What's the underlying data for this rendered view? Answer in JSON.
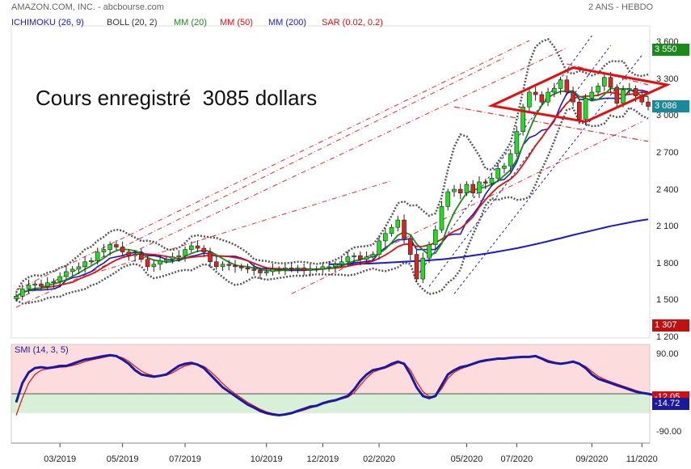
{
  "header": {
    "title": "AMAZON.COM, INC. - abcbourse.com",
    "timeframe": "2 ANS - HEBDO"
  },
  "indicators": [
    {
      "label": "ICHIMOKU (26, 9)",
      "color": "#1a1ac8"
    },
    {
      "label": "BOLL (20, 2)",
      "color": "#333333"
    },
    {
      "label": "MM (20)",
      "color": "#1a8a1a"
    },
    {
      "label": "MM (50)",
      "color": "#e01010"
    },
    {
      "label": "MM (200)",
      "color": "#1a1ac8"
    },
    {
      "label": "SAR (0.02, 0.2)",
      "color": "#d01010"
    }
  ],
  "annotation": "Cours enregistré  3085 dollars",
  "chart_data": [
    {
      "type": "candlestick",
      "yticks": [
        "3 600",
        "3 300",
        "3 000",
        "2 700",
        "2 400",
        "2 100",
        "1 800",
        "1 500",
        "1 200"
      ],
      "ylim": [
        1200,
        3700
      ],
      "xticks": [
        "03/2019",
        "05/2019",
        "07/2019",
        "10/2019",
        "12/2019",
        "02/2020",
        "05/2020",
        "07/2020",
        "09/2020",
        "11/2020"
      ],
      "value_tags": [
        {
          "value": "3 550",
          "color": "#1a8a1a"
        },
        {
          "value": "3 086",
          "color": "#1a8a9a"
        },
        {
          "value": "1 307",
          "color": "#c01010"
        }
      ],
      "close": [
        1540,
        1600,
        1630,
        1640,
        1620,
        1650,
        1660,
        1700,
        1740,
        1760,
        1780,
        1820,
        1830,
        1900,
        1920,
        1960,
        1940,
        1900,
        1870,
        1880,
        1840,
        1780,
        1800,
        1830,
        1840,
        1860,
        1870,
        1920,
        1950,
        1930,
        1900,
        1820,
        1780,
        1800,
        1790,
        1780,
        1770,
        1760,
        1750,
        1730,
        1740,
        1760,
        1760,
        1770,
        1760,
        1770,
        1750,
        1760,
        1760,
        1780,
        1780,
        1800,
        1820,
        1860,
        1870,
        1840,
        1860,
        1880,
        1990,
        2050,
        2100,
        2160,
        2010,
        1880,
        1680,
        1850,
        1960,
        2080,
        2270,
        2390,
        2410,
        2380,
        2450,
        2380,
        2470,
        2460,
        2500,
        2580,
        2600,
        2700,
        2880,
        3080,
        3200,
        3180,
        3120,
        3200,
        3230,
        3300,
        3200,
        3120,
        2980,
        3150,
        3200,
        3250,
        3320,
        3240,
        3110,
        3220,
        3230,
        3170,
        3120,
        3085
      ],
      "ma200": [
        null,
        null,
        null,
        null,
        null,
        null,
        null,
        null,
        null,
        null,
        null,
        null,
        null,
        null,
        null,
        null,
        null,
        null,
        null,
        null,
        null,
        null,
        null,
        null,
        null,
        null,
        null,
        null,
        null,
        null,
        null,
        null,
        null,
        null,
        null,
        null,
        null,
        null,
        null,
        null,
        null,
        null,
        null,
        null,
        null,
        null,
        null,
        null,
        null,
        null,
        1800,
        1800,
        1800,
        1801,
        1802,
        1803,
        1805,
        1807,
        1809,
        1812,
        1815,
        1818,
        1821,
        1823,
        1826,
        1828,
        1832,
        1836,
        1840,
        1845,
        1851,
        1857,
        1864,
        1871,
        1878,
        1886,
        1894,
        1903,
        1912,
        1921,
        1930,
        1941,
        1952,
        1963,
        1975,
        1987,
        2000,
        2012,
        2025,
        2038,
        2050,
        2062,
        2074,
        2086,
        2098,
        2110,
        2120,
        2130,
        2140,
        2150,
        2158,
        2165
      ],
      "series": [
        {
          "name": "MM (20)",
          "color": "#1a8a1a"
        },
        {
          "name": "MM (50)",
          "color": "#e01010"
        },
        {
          "name": "MM (200)",
          "color": "#1a1ac8"
        },
        {
          "name": "BOLL (20, 2)",
          "color": "#555555"
        },
        {
          "name": "ICHIMOKU (26, 9)",
          "color": "#1a1ac8"
        }
      ]
    },
    {
      "type": "line",
      "name": "SMI (14, 3, 5)",
      "yticks": [
        "90.00",
        "-90.00"
      ],
      "ylim": [
        -115,
        115
      ],
      "value_tags": [
        {
          "value": "-12.05",
          "color": "#d01010"
        },
        {
          "value": "-14.72",
          "color": "#1a1aa0"
        }
      ],
      "smi": [
        -20,
        25,
        50,
        60,
        62,
        60,
        62,
        65,
        65,
        70,
        75,
        80,
        82,
        85,
        88,
        90,
        88,
        80,
        70,
        55,
        45,
        42,
        40,
        42,
        45,
        55,
        65,
        70,
        72,
        68,
        60,
        45,
        30,
        15,
        5,
        -5,
        -15,
        -25,
        -32,
        -40,
        -45,
        -48,
        -50,
        -48,
        -45,
        -40,
        -35,
        -30,
        -28,
        -22,
        -18,
        -15,
        -10,
        -5,
        10,
        30,
        45,
        55,
        58,
        62,
        70,
        75,
        70,
        45,
        15,
        -5,
        -10,
        -5,
        20,
        45,
        55,
        62,
        65,
        70,
        75,
        78,
        80,
        82,
        82,
        84,
        85,
        86,
        86,
        88,
        82,
        75,
        72,
        70,
        72,
        75,
        70,
        60,
        45,
        35,
        30,
        25,
        20,
        15,
        10,
        5,
        2,
        0,
        -3,
        -5,
        -8,
        -12,
        -14.72
      ],
      "signal": [
        -50,
        -10,
        25,
        45,
        55,
        58,
        60,
        62,
        63,
        66,
        70,
        75,
        79,
        82,
        85,
        88,
        88,
        84,
        76,
        64,
        53,
        46,
        42,
        41,
        43,
        49,
        58,
        65,
        69,
        69,
        64,
        53,
        39,
        24,
        11,
        0,
        -10,
        -20,
        -28,
        -36,
        -42,
        -46,
        -48,
        -48,
        -46,
        -42,
        -38,
        -33,
        -29,
        -24,
        -20,
        -16,
        -12,
        -8,
        2,
        20,
        37,
        50,
        56,
        60,
        66,
        72,
        72,
        55,
        28,
        5,
        -6,
        -6,
        12,
        36,
        50,
        58,
        63,
        68,
        73,
        76,
        79,
        81,
        82,
        83,
        84,
        85,
        86,
        87,
        84,
        78,
        74,
        71,
        71,
        73,
        71,
        64,
        52,
        41,
        34,
        28,
        23,
        18,
        13,
        8,
        4,
        1,
        -2,
        -5,
        -7,
        -10,
        -12.05
      ]
    }
  ]
}
